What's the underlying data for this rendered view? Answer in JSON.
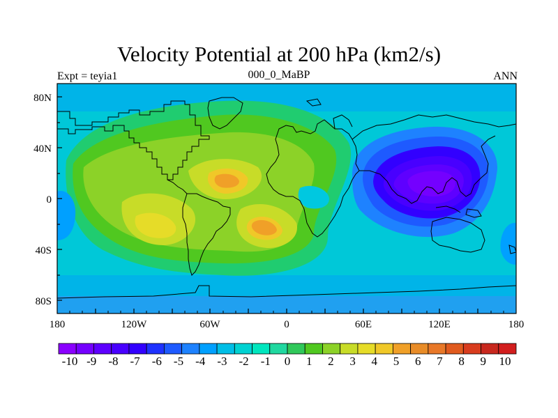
{
  "header": {
    "title": "Velocity Potential at 200 hPa (km2/s)",
    "left_label": "Expt = teyia1",
    "center_label": "000_0_MaBP",
    "right_label": "ANN"
  },
  "map": {
    "lon_ticks": [
      "180",
      "120W",
      "60W",
      "0",
      "60E",
      "120E",
      "180"
    ],
    "lat_ticks": [
      "80N",
      "40N",
      "0",
      "40S",
      "80S"
    ]
  },
  "colorbar": {
    "labels": [
      "-10",
      "-9",
      "-8",
      "-7",
      "-6",
      "-5",
      "-4",
      "-3",
      "-2",
      "-1",
      "0",
      "1",
      "2",
      "3",
      "4",
      "5",
      "6",
      "7",
      "8",
      "9",
      "10"
    ],
    "colors": [
      "#8a00ff",
      "#7400ff",
      "#5e00ff",
      "#4800ff",
      "#3200ff",
      "#1e32ff",
      "#1e5aff",
      "#1e82ff",
      "#00a0ff",
      "#00bee6",
      "#00d2d2",
      "#00e6be",
      "#20d8a0",
      "#30c85a",
      "#50c820",
      "#8cd228",
      "#c8dc28",
      "#e6dc28",
      "#f0c828",
      "#f0a028",
      "#e88c28",
      "#e87828",
      "#e05a1e",
      "#d83c1e",
      "#c8281e",
      "#d21e1e"
    ]
  }
}
